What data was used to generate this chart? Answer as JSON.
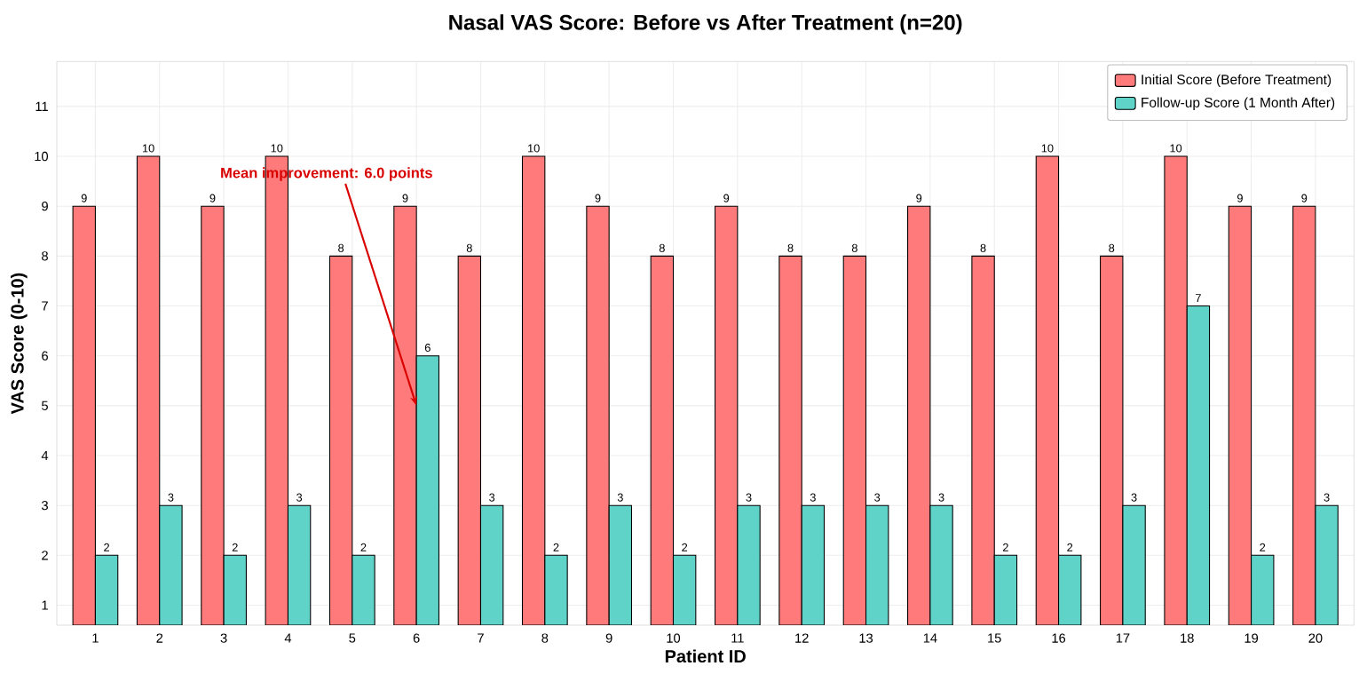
{
  "chart_data": {
    "type": "bar",
    "title": "Nasal VAS Score: Before vs After Treatment (n=20)",
    "xlabel": "Patient ID",
    "ylabel": "VAS Score (0-10)",
    "categories": [
      "1",
      "2",
      "3",
      "4",
      "5",
      "6",
      "7",
      "8",
      "9",
      "10",
      "11",
      "12",
      "13",
      "14",
      "15",
      "16",
      "17",
      "18",
      "19",
      "20"
    ],
    "series": [
      {
        "name": "Initial Score (Before Treatment)",
        "color": "#ff7b7b",
        "values": [
          9,
          10,
          9,
          10,
          8,
          9,
          8,
          10,
          9,
          8,
          9,
          8,
          8,
          9,
          8,
          10,
          8,
          10,
          9,
          9
        ]
      },
      {
        "name": "Follow-up Score (1 Month After)",
        "color": "#5fd3c8",
        "values": [
          2,
          3,
          2,
          3,
          2,
          6,
          3,
          2,
          3,
          2,
          3,
          3,
          3,
          3,
          2,
          2,
          3,
          7,
          2,
          3
        ]
      }
    ],
    "ylim": [
      0.6,
      11.9
    ],
    "yticks": [
      1,
      2,
      3,
      4,
      5,
      6,
      7,
      8,
      9,
      10,
      11
    ],
    "annotations": [
      {
        "text": "Mean improvement: 6.0 points",
        "x": "6",
        "y": 5
      }
    ],
    "data_labels": true,
    "grid": true,
    "legend": "top right"
  }
}
